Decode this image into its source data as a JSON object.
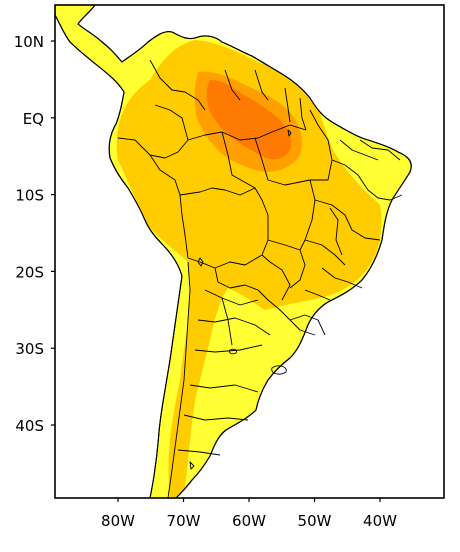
{
  "map": {
    "colors": {
      "ocean": "#ffffff",
      "level1": "#ffff33",
      "level2": "#ffcc00",
      "level3": "#ffa000",
      "level4": "#ff7a00",
      "lines": "#000000"
    },
    "lat_labels": [
      {
        "name": "lat-10n-label",
        "text": "10N"
      },
      {
        "name": "lat-eq-label",
        "text": "EQ"
      },
      {
        "name": "lat-10s-label",
        "text": "10S"
      },
      {
        "name": "lat-20s-label",
        "text": "20S"
      },
      {
        "name": "lat-30s-label",
        "text": "30S"
      },
      {
        "name": "lat-40s-label",
        "text": "40S"
      }
    ],
    "lon_labels": [
      {
        "name": "lon-80w-label",
        "text": "80W"
      },
      {
        "name": "lon-70w-label",
        "text": "70W"
      },
      {
        "name": "lon-60w-label",
        "text": "60W"
      },
      {
        "name": "lon-50w-label",
        "text": "50W"
      },
      {
        "name": "lon-40w-label",
        "text": "40W"
      }
    ]
  }
}
